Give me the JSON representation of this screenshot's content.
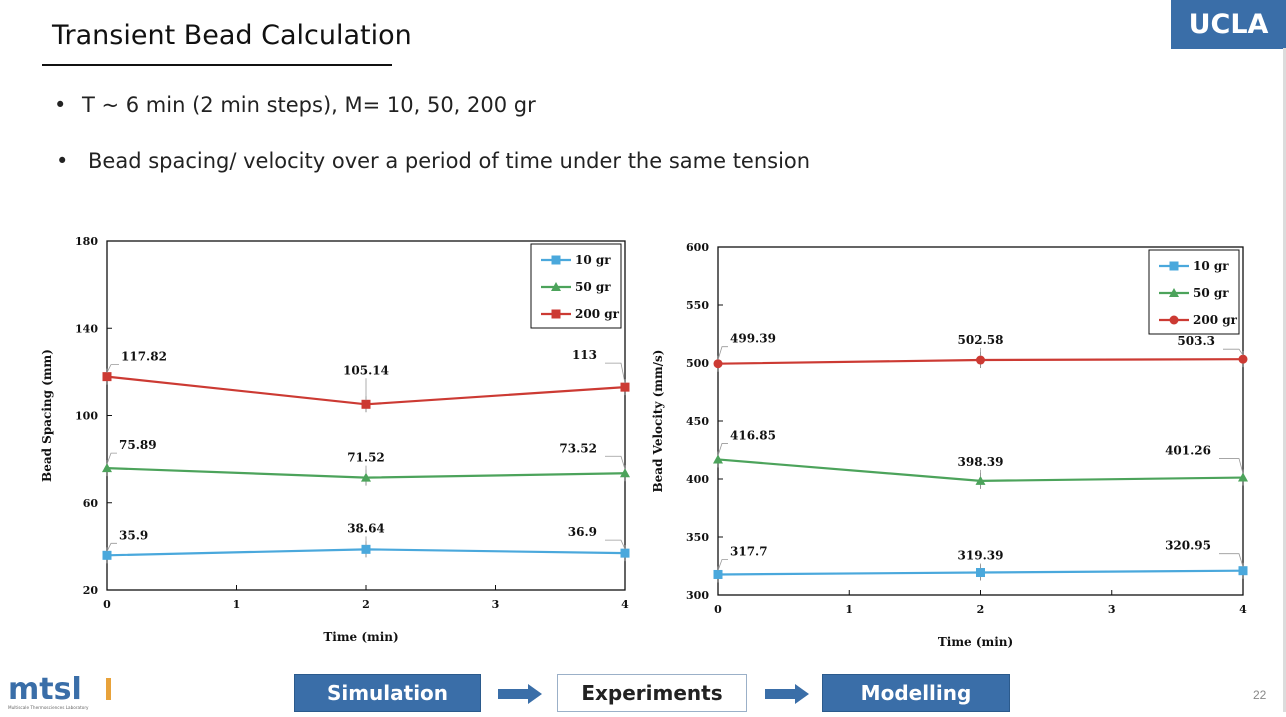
{
  "slide": {
    "title": "Transient Bead Calculation",
    "logo": "UCLA",
    "bullets": [
      "T ~ 6 min (2 min steps), M= 10, 50, 200 gr",
      "Bead spacing/ velocity over a period of time under the same tension"
    ],
    "bullet_symbol": "•",
    "page_number": "22",
    "footer_logo": "mtsl",
    "footer_logo_subtext": "Multiscale Thermosciences Laboratory"
  },
  "flow": {
    "steps": [
      "Simulation",
      "Experiments",
      "Modelling"
    ]
  },
  "colors": {
    "accent_blue": "#3a6ea8",
    "series_10": "#4aa8dc",
    "series_50": "#4ca35b",
    "series_200": "#cc3a33"
  },
  "chart_data": [
    {
      "type": "line",
      "xlabel": "Time (min)",
      "ylabel": "Bead Spacing (mm)",
      "xlim": [
        0,
        4
      ],
      "ylim": [
        20,
        180
      ],
      "xticks": [
        0,
        1,
        2,
        3,
        4
      ],
      "yticks": [
        20,
        60,
        100,
        140,
        180
      ],
      "legend_position": "top-right",
      "series": [
        {
          "name": "10 gr",
          "marker": "square",
          "color": "#4aa8dc",
          "x": [
            0,
            2,
            4
          ],
          "y": [
            35.9,
            38.64,
            36.9
          ],
          "labels": [
            "35.9",
            "38.64",
            "36.9"
          ]
        },
        {
          "name": "50 gr",
          "marker": "triangle",
          "color": "#4ca35b",
          "x": [
            0,
            2,
            4
          ],
          "y": [
            75.89,
            71.52,
            73.52
          ],
          "labels": [
            "75.89",
            "71.52",
            "73.52"
          ]
        },
        {
          "name": "200 gr",
          "marker": "square",
          "color": "#cc3a33",
          "x": [
            0,
            2,
            4
          ],
          "y": [
            117.82,
            105.14,
            113
          ],
          "labels": [
            "117.82",
            "105.14",
            "113"
          ]
        }
      ]
    },
    {
      "type": "line",
      "xlabel": "Time (min)",
      "ylabel": "Bead Velocity (mm/s)",
      "xlim": [
        0,
        4
      ],
      "ylim": [
        300,
        600
      ],
      "xticks": [
        0,
        1,
        2,
        3,
        4
      ],
      "yticks": [
        300,
        350,
        400,
        450,
        500,
        550,
        600
      ],
      "legend_position": "top-right",
      "series": [
        {
          "name": "10 gr",
          "marker": "square",
          "color": "#4aa8dc",
          "x": [
            0,
            2,
            4
          ],
          "y": [
            317.7,
            319.39,
            320.95
          ],
          "labels": [
            "317.7",
            "319.39",
            "320.95"
          ]
        },
        {
          "name": "50 gr",
          "marker": "triangle",
          "color": "#4ca35b",
          "x": [
            0,
            2,
            4
          ],
          "y": [
            416.85,
            398.39,
            401.26
          ],
          "labels": [
            "416.85",
            "398.39",
            "401.26"
          ]
        },
        {
          "name": "200 gr",
          "marker": "circle",
          "color": "#cc3a33",
          "x": [
            0,
            2,
            4
          ],
          "y": [
            499.39,
            502.58,
            503.3
          ],
          "labels": [
            "499.39",
            "502.58",
            "503.3"
          ]
        }
      ]
    }
  ]
}
